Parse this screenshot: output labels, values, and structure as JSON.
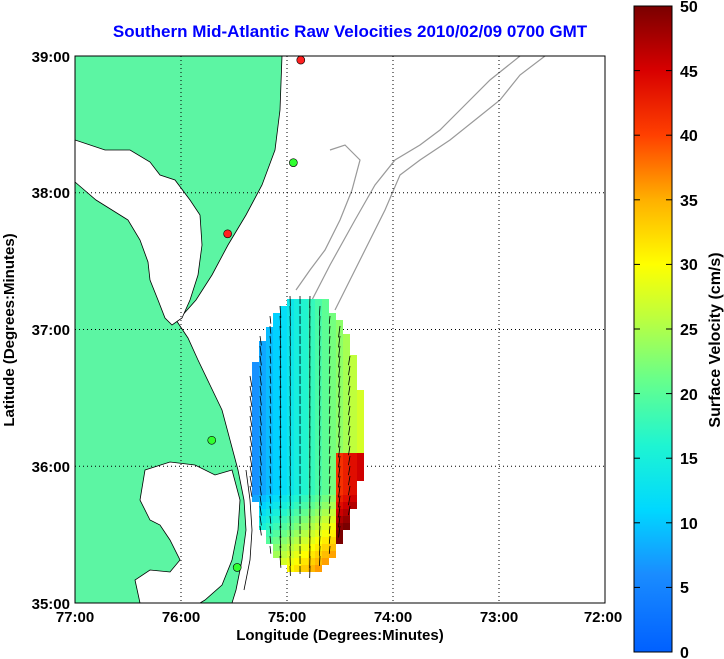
{
  "title": "Southern Mid-Atlantic Raw Velocities 2010/02/09 0700 GMT",
  "map": {
    "x_label": "Longitude (Degrees:Minutes)",
    "y_label": "Latitude (Degrees:Minutes)",
    "lon_ticks": [
      "77:00",
      "76:00",
      "75:00",
      "74:00",
      "73:00",
      "72:00"
    ],
    "lat_ticks": [
      "39:00",
      "38:00",
      "37:00",
      "36:00",
      "35:00"
    ],
    "lon_range": [
      -77,
      -72
    ],
    "lat_range": [
      35,
      39
    ],
    "land_color": "#5cf5a3",
    "grid": "dotted"
  },
  "colorbar": {
    "label": "Surface Velocity (cm/s)",
    "ticks": [
      "0",
      "5",
      "10",
      "15",
      "20",
      "25",
      "30",
      "35",
      "40",
      "45",
      "50"
    ],
    "range": [
      0,
      50
    ],
    "colormap": "jet"
  },
  "stations": [
    {
      "lon": -74.87,
      "lat": 38.97,
      "color": "#ff2020"
    },
    {
      "lon": -74.94,
      "lat": 38.22,
      "color": "#30ff30"
    },
    {
      "lon": -75.56,
      "lat": 37.7,
      "color": "#ff2020"
    },
    {
      "lon": -75.71,
      "lat": 36.19,
      "color": "#30ff30"
    },
    {
      "lon": -75.47,
      "lat": 35.26,
      "color": "#30ff30"
    }
  ]
}
